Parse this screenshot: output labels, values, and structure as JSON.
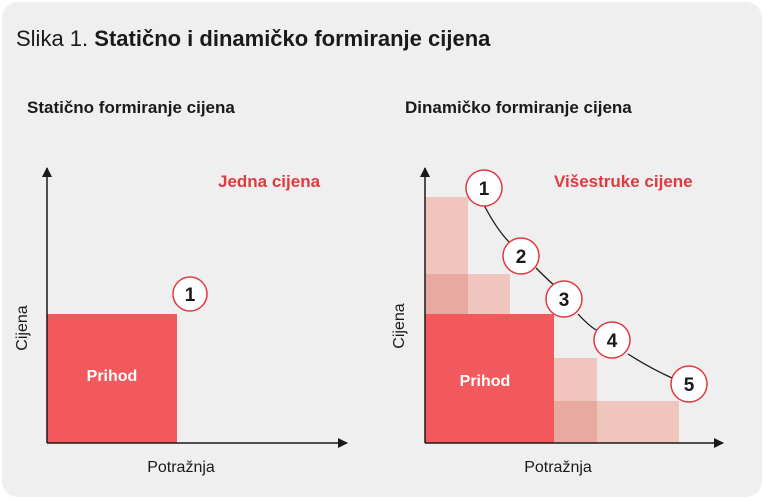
{
  "figure": {
    "prefix": "Slika 1.",
    "title": "Statično i dinamičko formiranje cijena"
  },
  "left_panel": {
    "heading": "Statično formiranje cijena",
    "note": "Jedna cijena",
    "revenue_label": "Prihod",
    "x_axis_label": "Potražnja",
    "y_axis_label": "Cijena",
    "markers": [
      "1"
    ]
  },
  "right_panel": {
    "heading": "Dinamičko formiranje cijena",
    "note": "Višestruke cijene",
    "revenue_label": "Prihod",
    "x_axis_label": "Potražnja",
    "y_axis_label": "Cijena",
    "markers": [
      "1",
      "2",
      "3",
      "4",
      "5"
    ]
  },
  "colors": {
    "revenue": "#f2595c",
    "accent_text": "#e03a3e",
    "light_block": "#efc5bd",
    "medium_block": "#e8aaa0",
    "marker_stroke": "#e03a3e",
    "text": "#1a1a1a"
  }
}
